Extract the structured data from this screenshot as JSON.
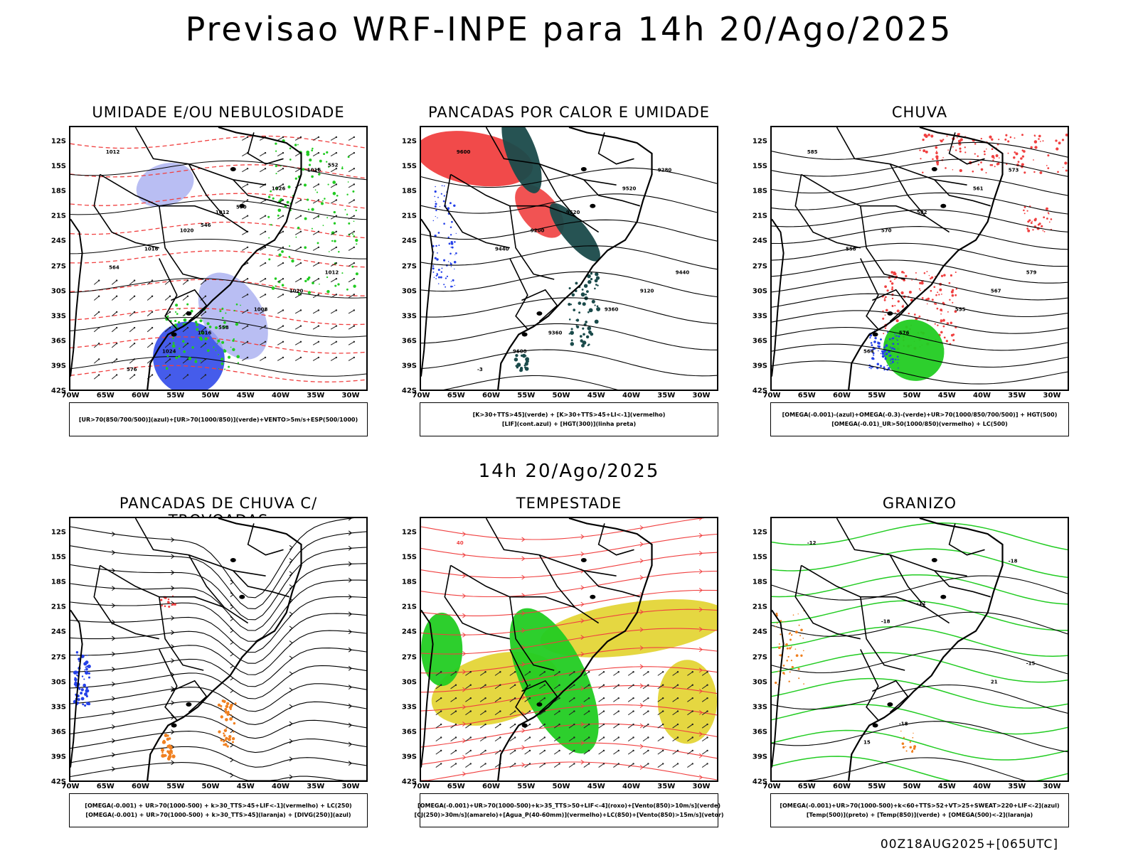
{
  "header": {
    "title": "Previsao WRF-INPE  para 14h 20/Ago/2025",
    "mid_time": "14h 20/Ago/2025",
    "footer": "00Z18AUG2025+[065UTC]"
  },
  "axes": {
    "lat_labels": [
      "12S",
      "15S",
      "18S",
      "21S",
      "24S",
      "27S",
      "30S",
      "33S",
      "36S",
      "39S",
      "42S"
    ],
    "lon_labels": [
      "70W",
      "65W",
      "60W",
      "55W",
      "50W",
      "45W",
      "40W",
      "35W",
      "30W"
    ]
  },
  "colors": {
    "blue": "#2440e8",
    "light_blue": "#a8aef0",
    "green": "#22cc22",
    "red": "#f04040",
    "yellow": "#e0d020",
    "orange": "#f08020",
    "dark_teal": "#1a4a4a"
  },
  "panels": [
    {
      "title": "UMIDADE E/OU NEBULOSIDADE",
      "legend": [
        "[UR>70(850/700/500)](azul)+[UR>70(1000/850)](verde)+VENTO>5m/s+ESP(500/1000)"
      ],
      "contour_labels": [
        "1012",
        "1012",
        "1012",
        "1016",
        "1016",
        "1020",
        "1020",
        "1024",
        "1026",
        "1016",
        "1008",
        "576",
        "570",
        "564",
        "558",
        "552",
        "546"
      ]
    },
    {
      "title": "PANCADAS POR CALOR E UMIDADE",
      "legend": [
        "[K>30+TTS>45](verde) + [K>30+TTS>45+LI<-1](vermelho)",
        "[LIF](cont.azul) + [HGT(300)](linha preta)"
      ],
      "contour_labels": [
        "9600",
        "9520",
        "9440",
        "9360",
        "9280",
        "9200",
        "9120",
        "9600",
        "9520",
        "9440",
        "9360",
        "-3"
      ]
    },
    {
      "title": "CHUVA",
      "legend": [
        "[OMEGA(-0.001)-(azul)+OMEGA(-0.3)-(verde)+UR>70(1000/850/700/500)] + HGT(500)",
        "[OMEGA(-0.01)_UR>50(1000/850)(vermelho) + LC(500)"
      ],
      "contour_labels": [
        "585",
        "582",
        "579",
        "576",
        "573",
        "570",
        "567",
        "564",
        "561",
        "558",
        "555"
      ]
    },
    {
      "title": "PANCADAS DE CHUVA C/ TROVOADAS",
      "legend": [
        "[OMEGA(-0.001) + UR>70(1000-500) + k>30_TTS>45+LIF<-1](vermelho) + LC(250)",
        "[OMEGA(-0.001) + UR>70(1000-500) + k>30_TTS>45](laranja) + [DIVG(250)](azul)"
      ],
      "contour_labels": []
    },
    {
      "title": "TEMPESTADE",
      "legend": [
        "[OMEGA(-0.001)+UR>70(1000-500)+k>35_TTS>50+LIF<-4](roxo)+[Vento(850)>10m/s](verde)",
        "[CJ(250)>30m/s](amarelo)+[Agua_P(40-60mm)](vermelho)+LC(850)+[Vento(850)>15m/s](vetor)"
      ],
      "contour_labels": [
        "40"
      ]
    },
    {
      "title": "GRANIZO",
      "legend": [
        "[OMEGA(-0.001)+UR>70(1000-500)+k<60+TTS>52+VT>25+SWEAT>220+LIF<-2](azul)",
        "[Temp(500)](preto) + [Temp(850)](verde) + [OMEGA(500)<-2](laranja)"
      ],
      "contour_labels": [
        "-12",
        "-12",
        "-15",
        "-18",
        "-18",
        "-18",
        "21",
        "15"
      ]
    }
  ]
}
